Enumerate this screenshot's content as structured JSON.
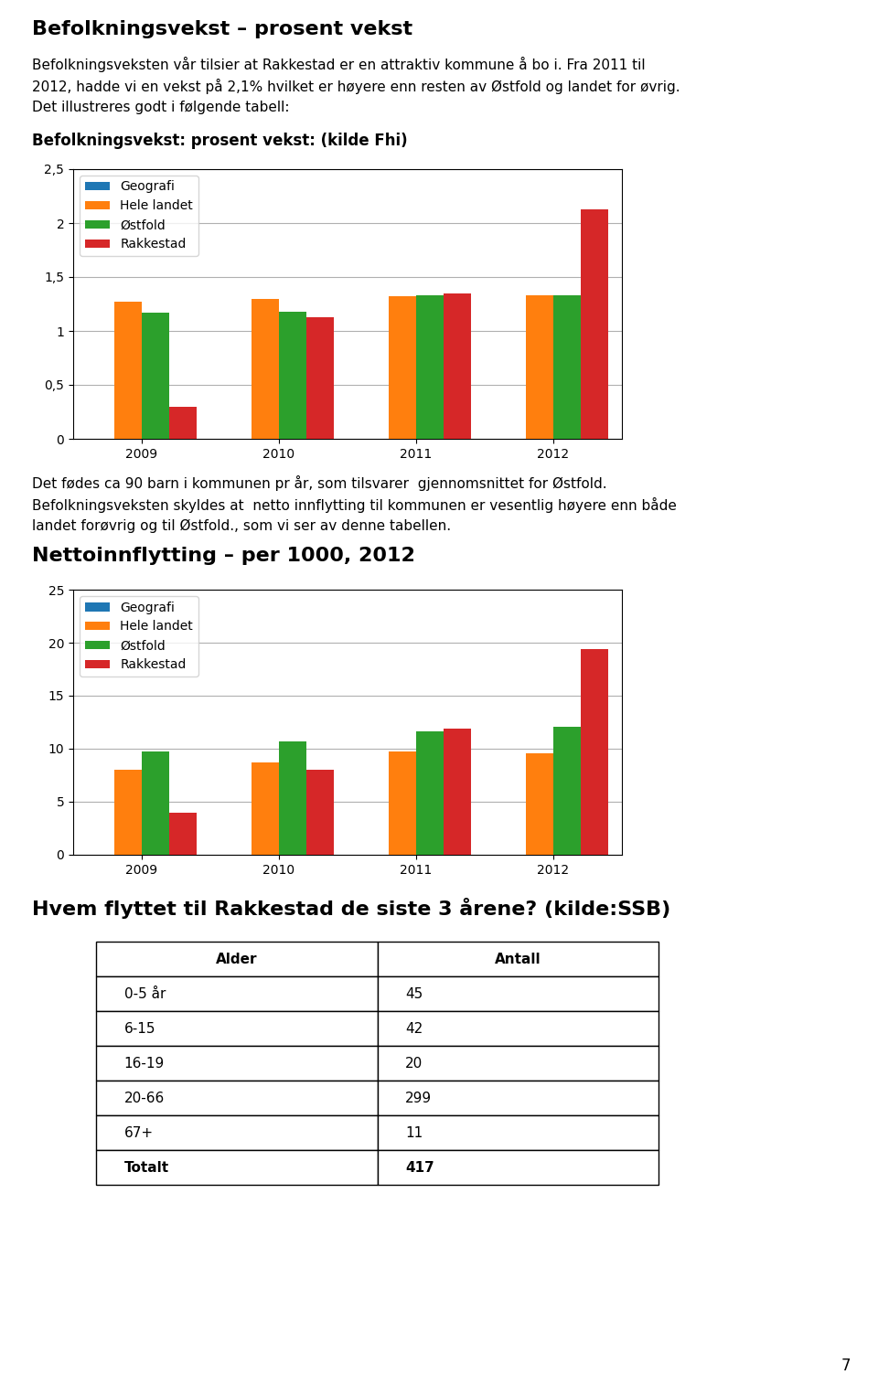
{
  "chart_data": [
    {
      "type": "bar",
      "title": "Befolkningsvekst – prosent vekst",
      "annotations": [
        "Befolkningsveksten vår tilsier at Rakkestad er en attraktiv kommune å bo i. Fra 2011 til",
        "2012, hadde vi en vekst på 2,1% hvilket er høyere enn resten av Østfold og landet for øvrig.",
        "Det illustreres godt i følgende tabell:"
      ],
      "subtitle": "Befolkningsvekst: prosent vekst: (kilde Fhi)",
      "categories": [
        "2009",
        "2010",
        "2011",
        "2012"
      ],
      "series": [
        {
          "name": "Geografi",
          "values": [
            0,
            0,
            0,
            0
          ]
        },
        {
          "name": "Hele landet",
          "values": [
            1.27,
            1.3,
            1.32,
            1.33
          ]
        },
        {
          "name": "Østfold",
          "values": [
            1.17,
            1.18,
            1.33,
            1.33
          ]
        },
        {
          "name": "Rakkestad",
          "values": [
            0.3,
            1.13,
            1.35,
            2.13
          ]
        }
      ],
      "ylim": [
        0,
        2.5
      ],
      "yticks": [
        0,
        {
          "value": 0.5,
          "label": "0,5"
        },
        1,
        {
          "value": 1.5,
          "label": "1,5"
        },
        2,
        {
          "value": 2.5,
          "label": "2,5"
        }
      ],
      "grid": true,
      "legend": "upper left"
    },
    {
      "type": "bar",
      "annotations": [
        "Det fødes ca 90 barn i kommunen pr år, som tilsvarer  gjennomsnittet for Østfold.",
        "Befolkningsveksten skyldes at  netto innflytting til kommunen er vesentlig høyere enn både",
        "landet forøvrig og til Østfold., som vi ser av denne tabellen."
      ],
      "title": "Nettoinnflytting – per 1000, 2012",
      "categories": [
        "2009",
        "2010",
        "2011",
        "2012"
      ],
      "series": [
        {
          "name": "Geografi",
          "values": [
            0,
            0,
            0,
            0
          ]
        },
        {
          "name": "Hele landet",
          "values": [
            8.0,
            8.7,
            9.7,
            9.6
          ]
        },
        {
          "name": "Østfold",
          "values": [
            9.7,
            10.7,
            11.6,
            12.1
          ]
        },
        {
          "name": "Rakkestad",
          "values": [
            4.0,
            8.0,
            11.9,
            19.4
          ]
        }
      ],
      "ylim": [
        0,
        25
      ],
      "yticks": [
        0,
        5,
        10,
        15,
        20,
        25
      ],
      "grid": true,
      "legend": "upper left"
    },
    {
      "type": "table",
      "title": "Hvem flyttet til Rakkestad de siste 3 årene? (kilde:SSB)",
      "columns": [
        "Alder",
        "Antall"
      ],
      "categories": [
        "0-5 år",
        "6-15",
        "16-19",
        "20-66",
        "67+",
        "Totalt"
      ],
      "values": [
        45,
        42,
        20,
        299,
        11,
        417
      ],
      "annotations": [
        "7"
      ]
    }
  ]
}
